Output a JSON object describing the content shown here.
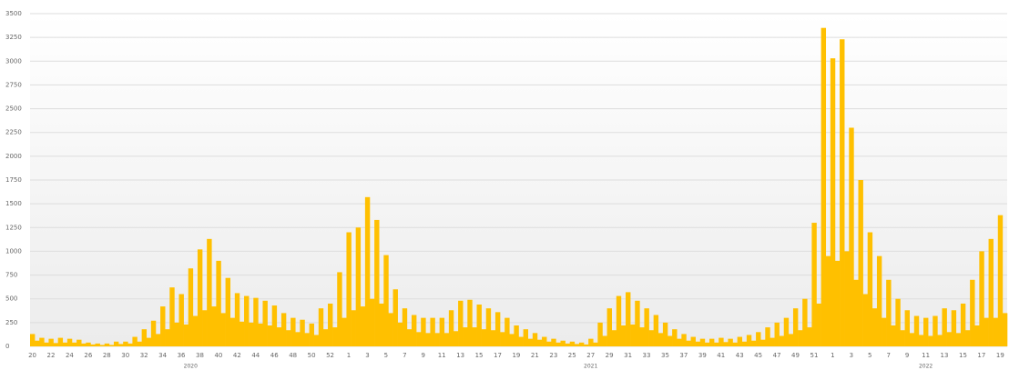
{
  "chart_data": {
    "type": "bar",
    "color": "#ffc000",
    "grid": true,
    "ylim": [
      0,
      3500
    ],
    "yticks": [
      0,
      250,
      500,
      750,
      1000,
      1250,
      1500,
      1750,
      2000,
      2250,
      2500,
      2750,
      3000,
      3250,
      3500
    ],
    "year_labels": [
      "2020",
      "2021",
      "2022"
    ],
    "categories": [
      "20",
      null,
      null,
      null,
      "22",
      null,
      null,
      null,
      "24",
      null,
      null,
      null,
      "26",
      null,
      null,
      null,
      "28",
      null,
      null,
      null,
      "30",
      null,
      null,
      null,
      "32",
      null,
      null,
      null,
      "34",
      null,
      null,
      null,
      "36",
      null,
      null,
      null,
      "38",
      null,
      null,
      null,
      "40",
      null,
      null,
      null,
      "42",
      null,
      null,
      null,
      "44",
      null,
      null,
      null,
      "46",
      null,
      null,
      null,
      "48",
      null,
      null,
      null,
      "50",
      null,
      null,
      null,
      "52",
      null,
      null,
      null,
      "1",
      null,
      null,
      null,
      "3",
      null,
      null,
      null,
      "5",
      null,
      null,
      null,
      "7",
      null,
      null,
      null,
      "9",
      null,
      null,
      null,
      "11",
      null,
      null,
      null,
      "13",
      null,
      null,
      null,
      "15",
      null,
      null,
      null,
      "17",
      null,
      null,
      null,
      "19",
      null,
      null,
      null,
      "21",
      null,
      null,
      null,
      "23",
      null,
      null,
      null,
      "25",
      null,
      null,
      null,
      "27",
      null,
      null,
      null,
      "29",
      null,
      null,
      null,
      "31",
      null,
      null,
      null,
      "33",
      null,
      null,
      null,
      "35",
      null,
      null,
      null,
      "37",
      null,
      null,
      null,
      "39",
      null,
      null,
      null,
      "41",
      null,
      null,
      null,
      "43",
      null,
      null,
      null,
      "45",
      null,
      null,
      null,
      "47",
      null,
      null,
      null,
      "49",
      null,
      null,
      null,
      "51",
      null,
      null,
      null,
      "1",
      null,
      null,
      null,
      "3",
      null,
      null,
      null,
      "5",
      null,
      null,
      null,
      "7",
      null,
      null,
      null,
      "9",
      null,
      null,
      null,
      "11",
      null,
      null,
      null,
      "13",
      null,
      null,
      null,
      "15",
      null,
      null,
      null,
      "17",
      null,
      null,
      null,
      "19",
      null
    ],
    "values": [
      130,
      60,
      90,
      40,
      80,
      35,
      90,
      40,
      80,
      40,
      70,
      30,
      40,
      20,
      30,
      15,
      30,
      15,
      50,
      25,
      50,
      30,
      100,
      50,
      180,
      90,
      270,
      130,
      420,
      180,
      620,
      250,
      550,
      230,
      820,
      320,
      1020,
      380,
      1130,
      420,
      900,
      350,
      720,
      300,
      560,
      260,
      530,
      250,
      510,
      240,
      480,
      220,
      430,
      200,
      350,
      170,
      300,
      150,
      280,
      140,
      240,
      120,
      400,
      180,
      450,
      200,
      780,
      300,
      1200,
      380,
      1250,
      420,
      1570,
      500,
      1330,
      450,
      960,
      350,
      600,
      250,
      400,
      180,
      330,
      150,
      300,
      140,
      300,
      140,
      300,
      140,
      380,
      160,
      480,
      200,
      490,
      200,
      440,
      180,
      400,
      170,
      360,
      150,
      300,
      130,
      220,
      100,
      180,
      80,
      140,
      70,
      100,
      50,
      80,
      40,
      60,
      30,
      50,
      25,
      40,
      20,
      80,
      40,
      250,
      110,
      400,
      170,
      530,
      220,
      570,
      230,
      480,
      200,
      400,
      170,
      330,
      140,
      250,
      110,
      180,
      80,
      130,
      60,
      100,
      50,
      80,
      40,
      80,
      40,
      90,
      45,
      80,
      40,
      100,
      50,
      120,
      60,
      150,
      70,
      200,
      90,
      250,
      110,
      300,
      130,
      400,
      170,
      500,
      200,
      1300,
      450,
      3350,
      950,
      3030,
      900,
      3230,
      1000,
      2300,
      700,
      1750,
      550,
      1200,
      400,
      950,
      300,
      700,
      220,
      500,
      170,
      380,
      140,
      320,
      120,
      300,
      110,
      320,
      120,
      400,
      150,
      380,
      140,
      450,
      170,
      700,
      220,
      1000,
      300,
      1130,
      300,
      1380,
      350
    ]
  }
}
